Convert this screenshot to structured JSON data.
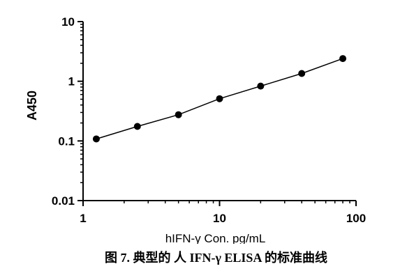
{
  "chart_data": {
    "type": "scatter",
    "title": "",
    "xlabel": "hIFN-γ Con. pg/mL",
    "ylabel": "A450",
    "xscale": "log",
    "yscale": "log",
    "xlim": [
      1,
      100
    ],
    "ylim": [
      0.01,
      10
    ],
    "x_ticks": [
      "1",
      "10",
      "100"
    ],
    "y_ticks": [
      "10",
      "1",
      "0.1",
      "0.01"
    ],
    "grid": false,
    "legend": "none",
    "series": [
      {
        "x": [
          1.25,
          2.5,
          5,
          10,
          20,
          40,
          80
        ],
        "y": [
          0.108,
          0.175,
          0.275,
          0.51,
          0.83,
          1.35,
          2.4
        ],
        "fit_line": true
      }
    ],
    "caption": "图 7. 典型的 人 IFN-γ ELISA 的标准曲线"
  },
  "colors": {
    "points": "#000000",
    "line": "#000000",
    "axes": "#000000"
  }
}
